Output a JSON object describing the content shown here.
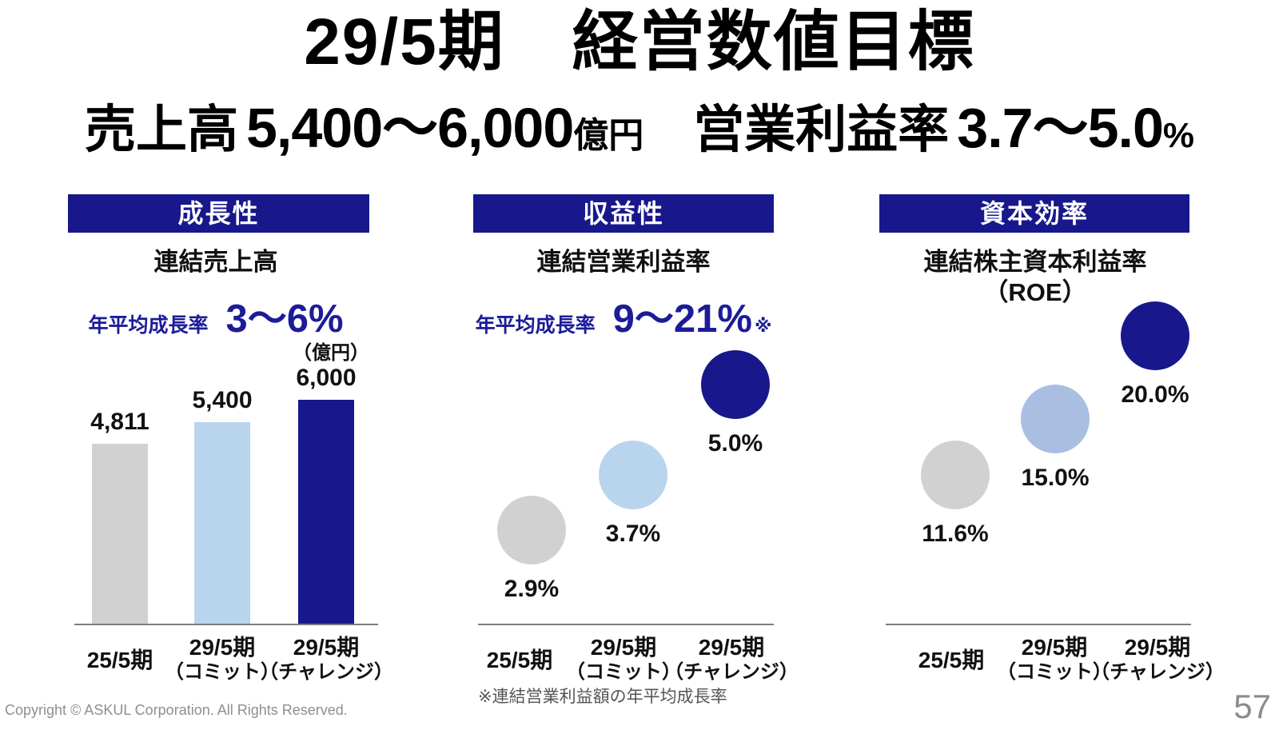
{
  "slide": {
    "title": "29/5期　経営数値目標",
    "subtitle": {
      "sales_label": "売上高",
      "sales_value": "5,400〜6,000",
      "sales_unit": "億円",
      "margin_label": "営業利益率",
      "margin_value": "3.7〜5.0",
      "margin_unit": "%"
    }
  },
  "panels": [
    {
      "header": "成長性",
      "subtitle": "連結売上高",
      "cagr_label": "年平均成長率",
      "cagr_value": "3〜6%",
      "unit_label": "（億円）"
    },
    {
      "header": "収益性",
      "subtitle": "連結営業利益率",
      "cagr_label": "年平均成長率",
      "cagr_value": "9〜21%",
      "cagr_note": "※"
    },
    {
      "header": "資本効率",
      "subtitle": "連結株主資本利益率",
      "subtitle_line2": "（ROE）"
    }
  ],
  "footnote": "※連結営業利益額の年平均成長率",
  "footer": {
    "copyright": "Copyright © ASKUL Corporation. All Rights Reserved.",
    "page_number": "57"
  },
  "colors": {
    "navy": "#18188c",
    "light_blue": "#b9d5ed",
    "periwinkle": "#a8bfe2",
    "gray": "#d1d1d1",
    "text_navy": "#1c1c99",
    "axis_gray": "#7d7d7d"
  },
  "chart_data": [
    {
      "type": "bar",
      "title": "連結売上高",
      "ylabel": "億円",
      "cagr_annotation": "年平均成長率 3〜6%",
      "categories": [
        "25/5期",
        "29/5期\n（コミット）",
        "29/5期\n（チャレンジ）"
      ],
      "values": [
        4811,
        5400,
        6000
      ],
      "value_labels": [
        "4,811",
        "5,400",
        "6,000"
      ],
      "colors": [
        "gray",
        "light_blue",
        "navy"
      ],
      "ylim": [
        0,
        6000
      ],
      "grid": false
    },
    {
      "type": "scatter",
      "title": "連結営業利益率",
      "ylabel": "%",
      "cagr_annotation": "年平均成長率 9〜21%※",
      "footnote": "※連結営業利益額の年平均成長率",
      "categories": [
        "25/5期",
        "29/5期\n（コミット）",
        "29/5期\n（チャレンジ）"
      ],
      "values": [
        2.9,
        3.7,
        5.0
      ],
      "value_labels": [
        "2.9%",
        "3.7%",
        "5.0%"
      ],
      "colors": [
        "gray",
        "light_blue",
        "navy"
      ],
      "grid": false
    },
    {
      "type": "scatter",
      "title": "連結株主資本利益率（ROE）",
      "ylabel": "%",
      "categories": [
        "25/5期",
        "29/5期\n（コミット）",
        "29/5期\n（チャレンジ）"
      ],
      "values": [
        11.6,
        15.0,
        20.0
      ],
      "value_labels": [
        "11.6%",
        "15.0%",
        "20.0%"
      ],
      "colors": [
        "gray",
        "periwinkle",
        "navy"
      ],
      "grid": false
    }
  ]
}
